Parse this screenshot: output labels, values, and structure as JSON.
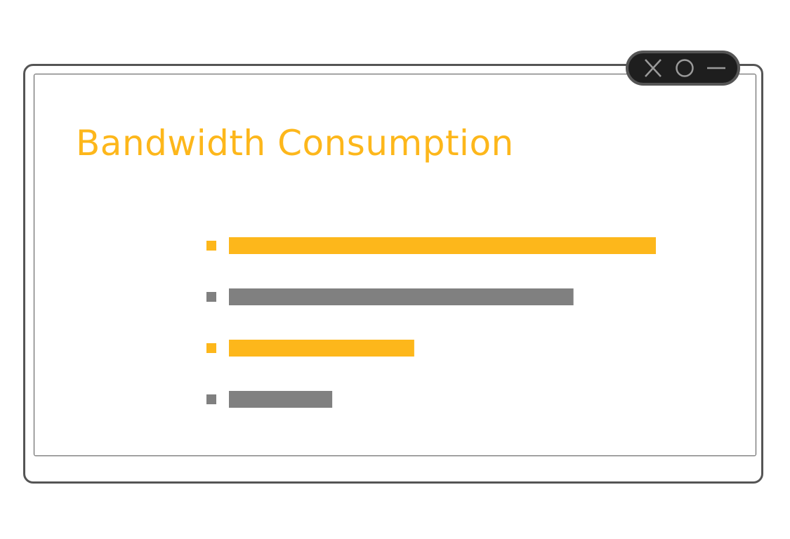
{
  "window": {
    "controls": {
      "close_icon": "close-icon",
      "maximize_icon": "circle-icon",
      "minimize_icon": "minus-icon"
    }
  },
  "chart_data": {
    "type": "bar",
    "orientation": "horizontal",
    "title": "Bandwidth Consumption",
    "categories": [
      "",
      "",
      "",
      ""
    ],
    "values": [
      100,
      80.7,
      43.4,
      24.2
    ],
    "xlim": [
      0,
      100
    ],
    "colors": [
      "#fdb71b",
      "#808080",
      "#fdb71b",
      "#808080"
    ],
    "grid": false,
    "axes_visible": false,
    "legend": "markers-left"
  },
  "colors": {
    "accent": "#fdb71b",
    "secondary": "#808080",
    "frame": "#555555",
    "controls_bg": "#1e1e1e"
  }
}
